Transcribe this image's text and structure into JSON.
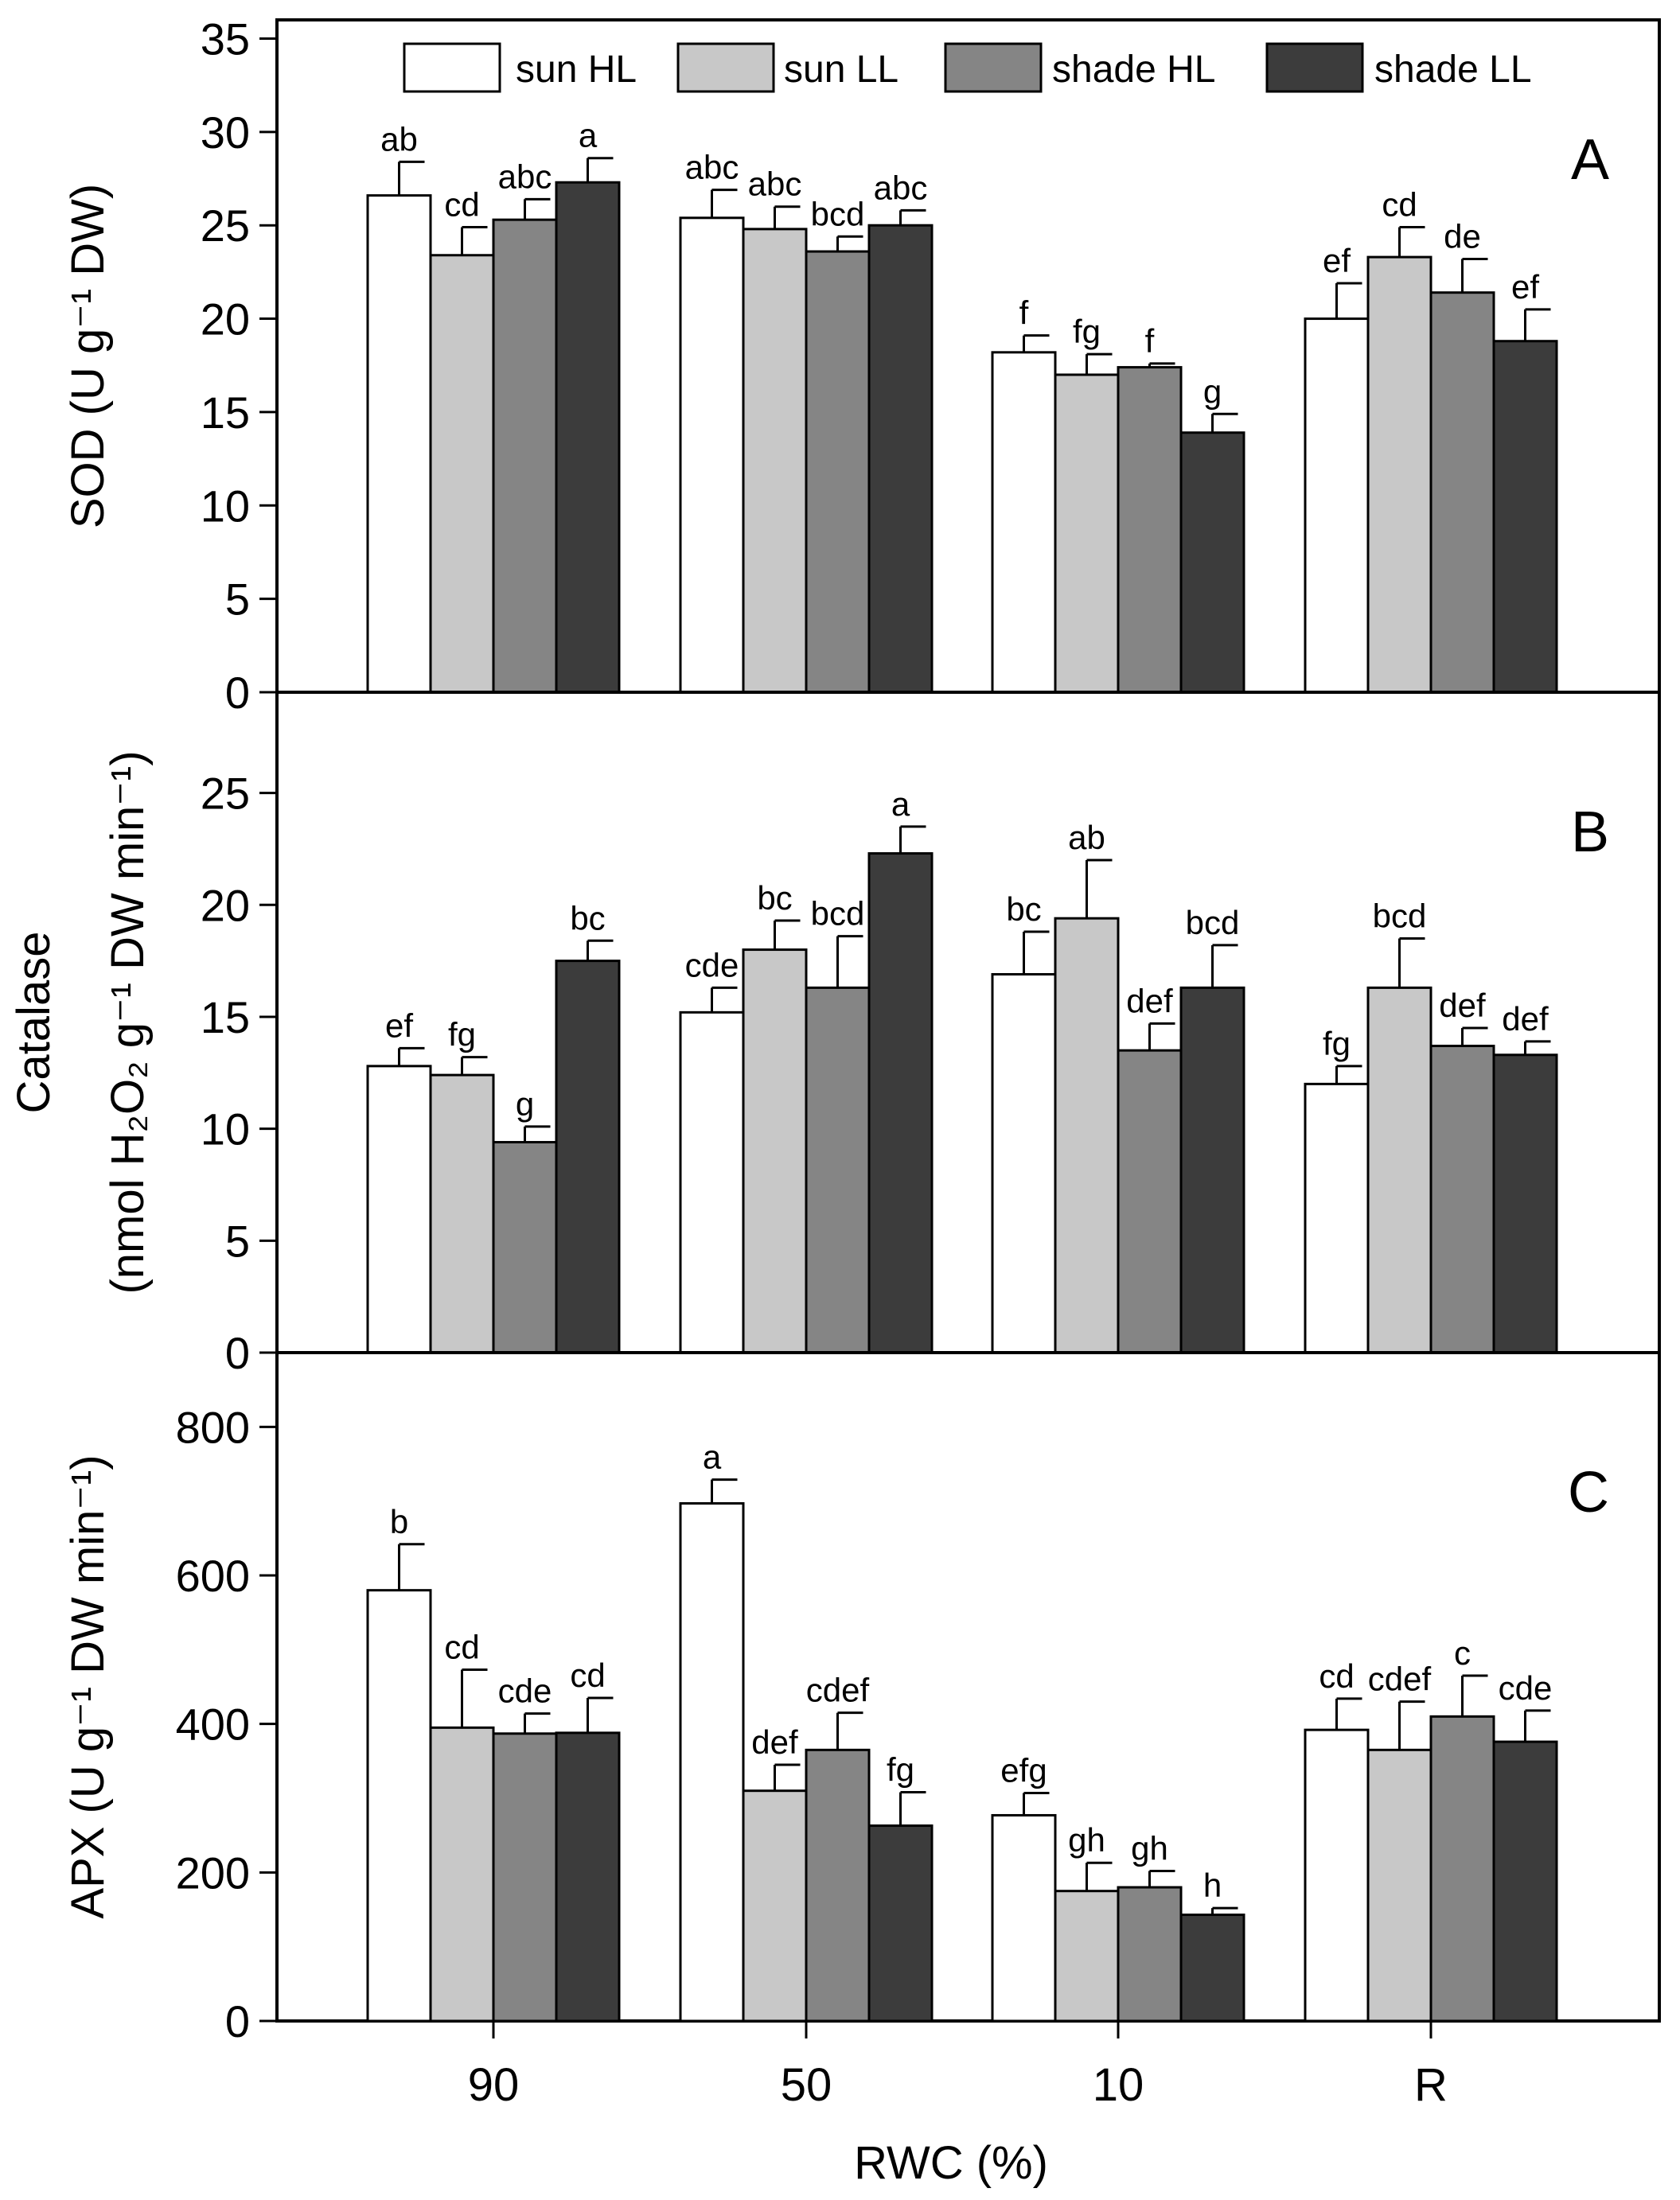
{
  "legend": [
    {
      "label": "sun HL",
      "color": "#ffffff"
    },
    {
      "label": "sun LL",
      "color": "#c8c8c8"
    },
    {
      "label": "shade HL",
      "color": "#858585"
    },
    {
      "label": "shade LL",
      "color": "#3c3c3c"
    }
  ],
  "xlabel": "RWC (%)",
  "chart_data": [
    {
      "type": "bar",
      "panel": "A",
      "ylabel": "SOD (U g⁻¹ DW)",
      "ylim": [
        0,
        36
      ],
      "yticks": [
        0,
        5,
        10,
        15,
        20,
        25,
        30,
        35
      ],
      "categories": [
        "90",
        "50",
        "10",
        "R"
      ],
      "series": [
        {
          "name": "sun HL",
          "color": "#ffffff",
          "values": [
            26.6,
            25.4,
            18.2,
            20.0
          ],
          "errors": [
            1.8,
            1.5,
            0.9,
            1.9
          ],
          "letters": [
            "ab",
            "abc",
            "f",
            "ef"
          ]
        },
        {
          "name": "sun LL",
          "color": "#c8c8c8",
          "values": [
            23.4,
            24.8,
            17.0,
            23.3
          ],
          "errors": [
            1.5,
            1.2,
            1.1,
            1.6
          ],
          "letters": [
            "cd",
            "abc",
            "fg",
            "cd"
          ]
        },
        {
          "name": "shade HL",
          "color": "#858585",
          "values": [
            25.3,
            23.6,
            17.4,
            21.4
          ],
          "errors": [
            1.1,
            0.8,
            0.2,
            1.8
          ],
          "letters": [
            "abc",
            "bcd",
            "f",
            "de"
          ]
        },
        {
          "name": "shade LL",
          "color": "#3c3c3c",
          "values": [
            27.3,
            25.0,
            13.9,
            18.8
          ],
          "errors": [
            1.3,
            0.8,
            1.0,
            1.7
          ],
          "letters": [
            "a",
            "abc",
            "g",
            "ef"
          ]
        }
      ]
    },
    {
      "type": "bar",
      "panel": "B",
      "ylabel_line1": "Catalase",
      "ylabel_line2": "(nmol H₂O₂ g⁻¹ DW min⁻¹)",
      "ylim": [
        0,
        29.5
      ],
      "yticks": [
        0,
        5,
        10,
        15,
        20,
        25
      ],
      "categories": [
        "90",
        "50",
        "10",
        "R"
      ],
      "series": [
        {
          "name": "sun HL",
          "color": "#ffffff",
          "values": [
            12.8,
            15.2,
            16.9,
            12.0
          ],
          "errors": [
            0.8,
            1.1,
            1.9,
            0.8
          ],
          "letters": [
            "ef",
            "cde",
            "bc",
            "fg"
          ]
        },
        {
          "name": "sun LL",
          "color": "#c8c8c8",
          "values": [
            12.4,
            18.0,
            19.4,
            16.3
          ],
          "errors": [
            0.8,
            1.3,
            2.6,
            2.2
          ],
          "letters": [
            "fg",
            "bc",
            "ab",
            "bcd"
          ]
        },
        {
          "name": "shade HL",
          "color": "#858585",
          "values": [
            9.4,
            16.3,
            13.5,
            13.7
          ],
          "errors": [
            0.7,
            2.3,
            1.2,
            0.8
          ],
          "letters": [
            "g",
            "bcd",
            "def",
            "def"
          ]
        },
        {
          "name": "shade LL",
          "color": "#3c3c3c",
          "values": [
            17.5,
            22.3,
            16.3,
            13.3
          ],
          "errors": [
            0.9,
            1.2,
            1.9,
            0.6
          ],
          "letters": [
            "bc",
            "a",
            "bcd",
            "def"
          ]
        }
      ]
    },
    {
      "type": "bar",
      "panel": "C",
      "ylabel": "APX (U g⁻¹ DW min⁻¹)",
      "ylim": [
        0,
        900
      ],
      "yticks": [
        0,
        200,
        400,
        600,
        800
      ],
      "categories": [
        "90",
        "50",
        "10",
        "R"
      ],
      "series": [
        {
          "name": "sun HL",
          "color": "#ffffff",
          "values": [
            580,
            697,
            277,
            392
          ],
          "errors": [
            62,
            32,
            30,
            42
          ],
          "letters": [
            "b",
            "a",
            "efg",
            "cd"
          ]
        },
        {
          "name": "sun LL",
          "color": "#c8c8c8",
          "values": [
            395,
            310,
            175,
            365
          ],
          "errors": [
            78,
            35,
            38,
            65
          ],
          "letters": [
            "cd",
            "def",
            "gh",
            "cdef"
          ]
        },
        {
          "name": "shade HL",
          "color": "#858585",
          "values": [
            387,
            365,
            180,
            410
          ],
          "errors": [
            27,
            50,
            22,
            55
          ],
          "letters": [
            "cde",
            "cdef",
            "gh",
            "c"
          ]
        },
        {
          "name": "shade LL",
          "color": "#3c3c3c",
          "values": [
            388,
            263,
            143,
            376
          ],
          "errors": [
            47,
            45,
            9,
            42
          ],
          "letters": [
            "cd",
            "fg",
            "h",
            "cde"
          ]
        }
      ]
    }
  ]
}
